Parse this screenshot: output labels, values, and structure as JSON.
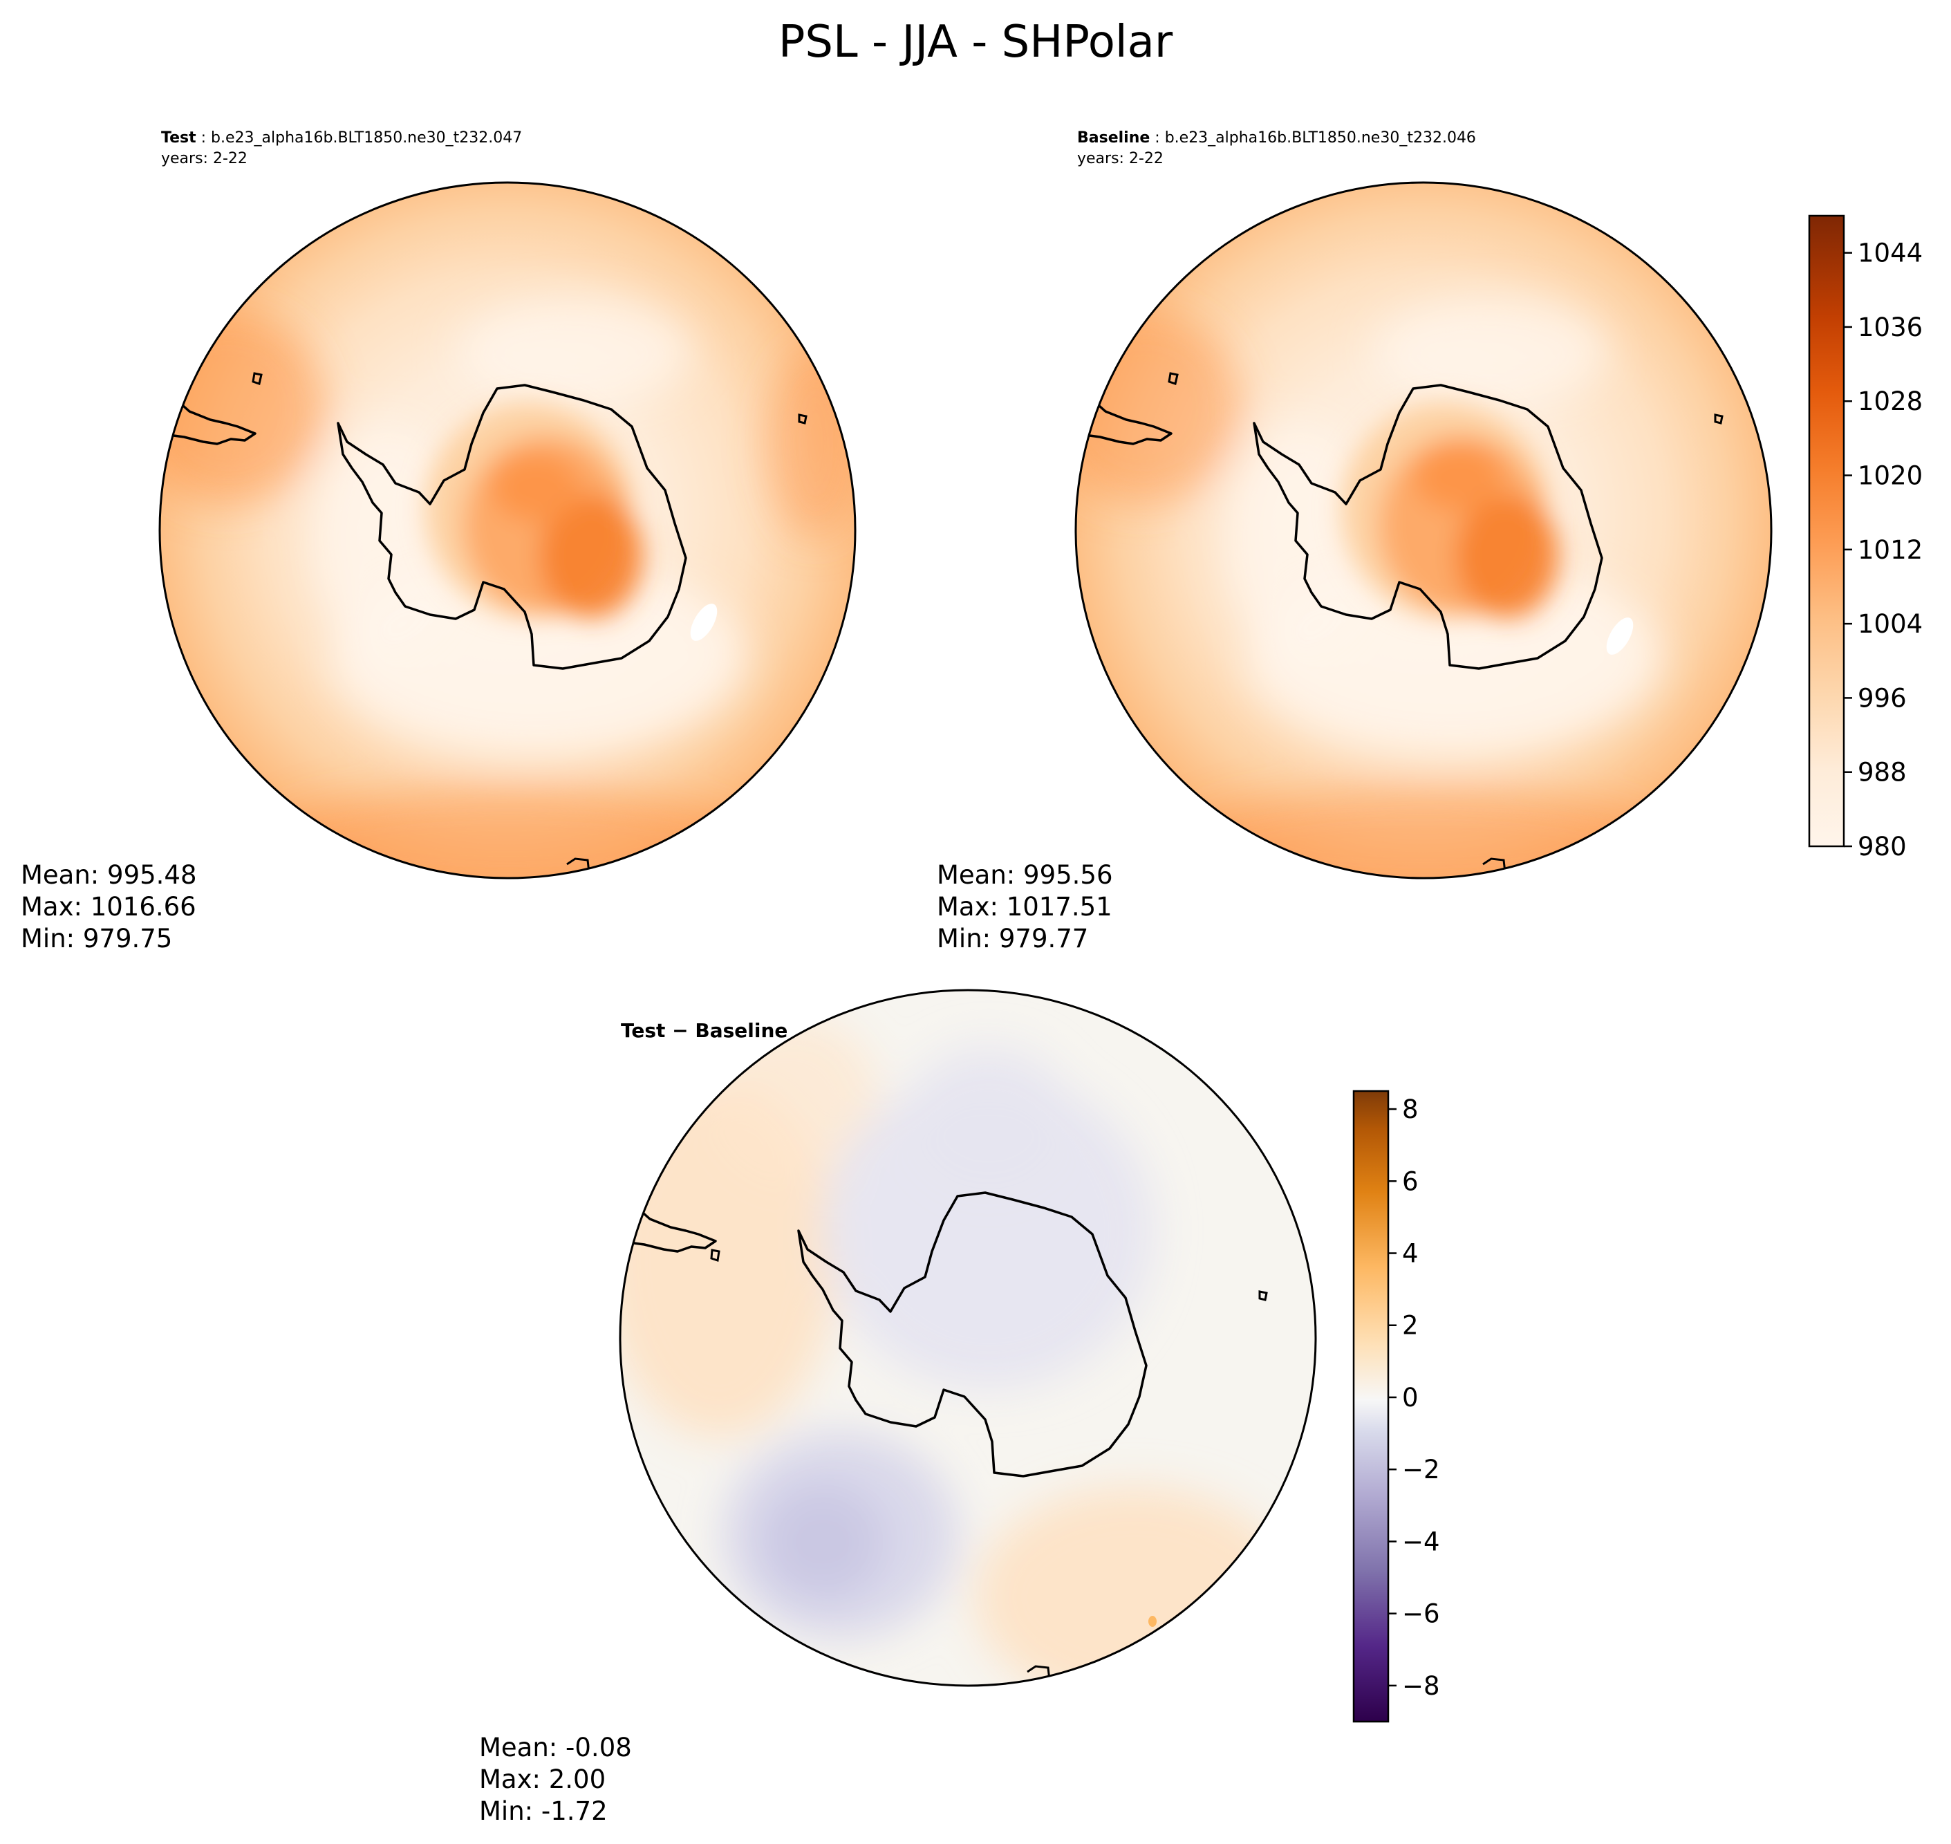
{
  "figure": {
    "title": "PSL - JJA - SHPolar"
  },
  "panels": [
    {
      "id": "test",
      "header_bold": "Test",
      "header_rest": " : b.e23_alpha16b.BLT1850.ne30_t232.047",
      "years": "years: 2-22",
      "stats": [
        "Mean: 995.48",
        "Max: 1016.66",
        "Min: 979.75"
      ]
    },
    {
      "id": "baseline",
      "header_bold": "Baseline",
      "header_rest": " : b.e23_alpha16b.BLT1850.ne30_t232.046",
      "years": "years: 2-22",
      "stats": [
        "Mean: 995.56",
        "Max: 1017.51",
        "Min: 979.77"
      ]
    },
    {
      "id": "diff",
      "header": "Test − Baseline",
      "stats": [
        "Mean: -0.08",
        "Max:  2.00",
        "Min: -1.72"
      ]
    }
  ],
  "colors": {
    "oranges": [
      "#fff5eb",
      "#feecd9",
      "#fee1c2",
      "#fdd1a3",
      "#fdbf85",
      "#fdaa69",
      "#fd9549",
      "#f77f2c",
      "#ec6614",
      "#dc4e05",
      "#c03f02",
      "#a33303",
      "#7f2704"
    ],
    "puor": [
      "#2d004b",
      "#542788",
      "#8073ac",
      "#b2abd2",
      "#d8daeb",
      "#f7f7f7",
      "#fee0b6",
      "#fdb863",
      "#e08214",
      "#b35806",
      "#7f3b08"
    ]
  },
  "chart_data": [
    {
      "type": "heatmap",
      "name_ref": "test",
      "projection": "south-polar-stereographic",
      "colorbar": {
        "range": [
          980,
          1048
        ],
        "ticks": [
          "980",
          "988",
          "996",
          "1004",
          "1012",
          "1020",
          "1028",
          "1036",
          "1044"
        ],
        "tick_values": [
          980,
          988,
          996,
          1004,
          1012,
          1020,
          1028,
          1036,
          1044
        ]
      },
      "mean": 995.48,
      "max": 1016.66,
      "min": 979.75
    },
    {
      "type": "heatmap",
      "name_ref": "baseline",
      "projection": "south-polar-stereographic",
      "colorbar": {
        "range": [
          980,
          1048
        ],
        "ticks": [
          "980",
          "988",
          "996",
          "1004",
          "1012",
          "1020",
          "1028",
          "1036",
          "1044"
        ],
        "tick_values": [
          980,
          988,
          996,
          1004,
          1012,
          1020,
          1028,
          1036,
          1044
        ]
      },
      "mean": 995.56,
      "max": 1017.51,
      "min": 979.77
    },
    {
      "type": "heatmap",
      "name_ref": "diff",
      "projection": "south-polar-stereographic",
      "colorbar": {
        "range": [
          -9,
          8.5
        ],
        "ticks": [
          "8",
          "6",
          "4",
          "2",
          "0",
          "−2",
          "−4",
          "−6",
          "−8"
        ],
        "tick_values": [
          8,
          6,
          4,
          2,
          0,
          -2,
          -4,
          -6,
          -8
        ]
      },
      "mean": -0.08,
      "max": 2.0,
      "min": -1.72
    }
  ]
}
